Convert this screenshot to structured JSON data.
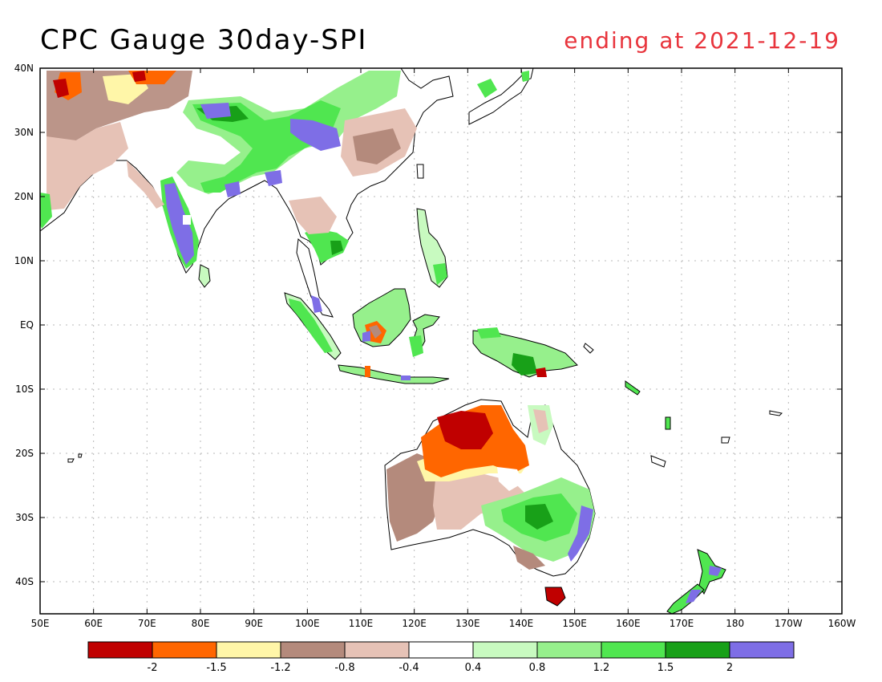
{
  "header": {
    "title": "CPC Gauge 30day-SPI",
    "subtitle": "ending at 2021-12-19"
  },
  "map": {
    "lon_range": [
      50,
      160
    ],
    "lat_range": [
      -45,
      40
    ],
    "x_ticks": [
      "50E",
      "60E",
      "70E",
      "80E",
      "90E",
      "100E",
      "110E",
      "120E",
      "130E",
      "140E",
      "150E",
      "160E",
      "170E",
      "180",
      "170W",
      "160W"
    ],
    "y_ticks": [
      {
        "lat": 40,
        "label": "40N"
      },
      {
        "lat": 30,
        "label": "30N"
      },
      {
        "lat": 20,
        "label": "20N"
      },
      {
        "lat": 10,
        "label": "10N"
      },
      {
        "lat": 0,
        "label": "EQ"
      },
      {
        "lat": -10,
        "label": "10S"
      },
      {
        "lat": -20,
        "label": "20S"
      },
      {
        "lat": -30,
        "label": "30S"
      },
      {
        "lat": -40,
        "label": "40S"
      }
    ]
  },
  "colorbar": {
    "colors": [
      "#c00000",
      "#ff6600",
      "#fff6a8",
      "#b48a7c",
      "#e6c2b6",
      "#ffffff",
      "#c8fac0",
      "#96f08c",
      "#50e650",
      "#18a018",
      "#7e6ee6"
    ],
    "labels": [
      "-2",
      "-1.5",
      "-1.2",
      "-0.8",
      "-0.4",
      "0.4",
      "0.8",
      "1.2",
      "1.5",
      "2"
    ]
  }
}
